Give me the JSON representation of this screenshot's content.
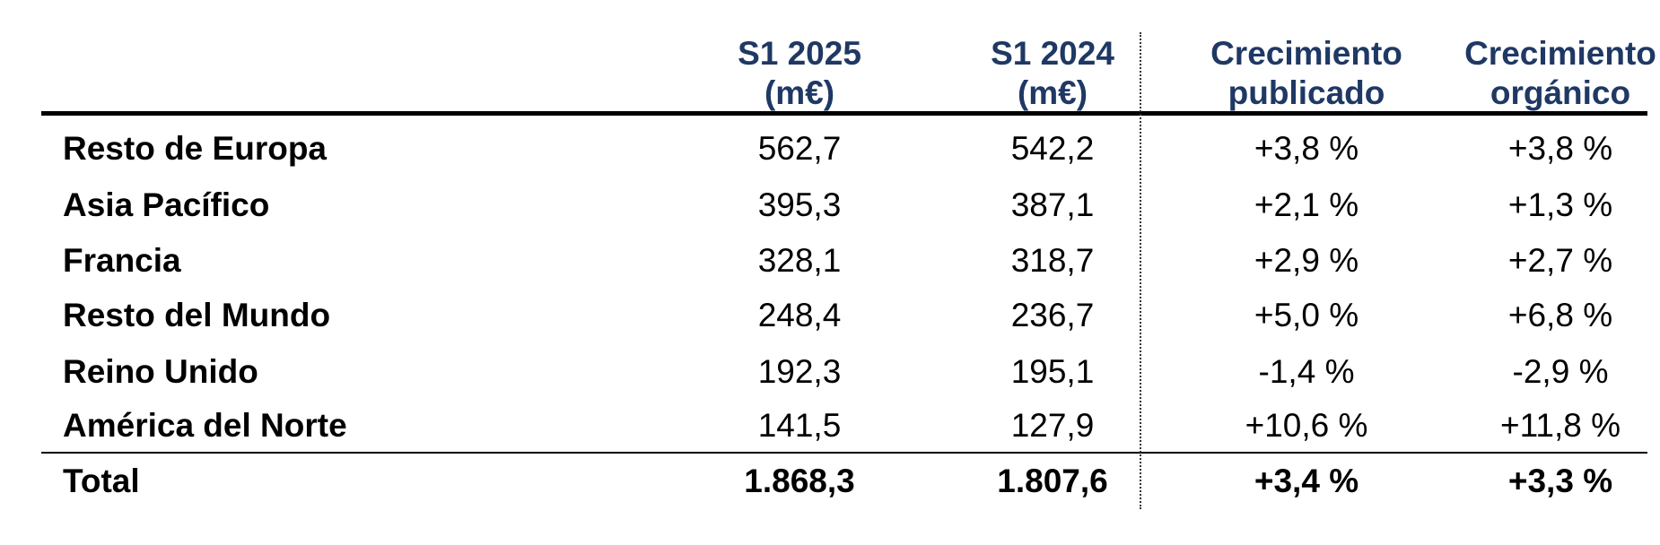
{
  "table": {
    "headers": [
      {
        "line1": "S1 2025",
        "line2": "(m€)"
      },
      {
        "line1": "S1 2024",
        "line2": "(m€)"
      },
      {
        "line1": "Crecimiento",
        "line2": "publicado"
      },
      {
        "line1": "Crecimiento",
        "line2": "orgánico"
      }
    ],
    "rows": [
      {
        "label": "Resto de Europa",
        "s1_2025": "562,7",
        "s1_2024": "542,2",
        "published": "+3,8 %",
        "organic": "+3,8 %"
      },
      {
        "label": "Asia Pacífico",
        "s1_2025": "395,3",
        "s1_2024": "387,1",
        "published": "+2,1 %",
        "organic": "+1,3 %"
      },
      {
        "label": "Francia",
        "s1_2025": "328,1",
        "s1_2024": "318,7",
        "published": "+2,9 %",
        "organic": "+2,7 %"
      },
      {
        "label": "Resto del Mundo",
        "s1_2025": "248,4",
        "s1_2024": "236,7",
        "published": "+5,0 %",
        "organic": "+6,8 %"
      },
      {
        "label": "Reino Unido",
        "s1_2025": "192,3",
        "s1_2024": "195,1",
        "published": "-1,4 %",
        "organic": "-2,9 %"
      },
      {
        "label": "América del Norte",
        "s1_2025": "141,5",
        "s1_2024": "127,9",
        "published": "+10,6 %",
        "organic": "+11,8 %"
      }
    ],
    "total": {
      "label": "Total",
      "s1_2025": "1.868,3",
      "s1_2024": "1.807,6",
      "published": "+3,4 %",
      "organic": "+3,3 %"
    }
  },
  "colors": {
    "header_text": "#1f3864",
    "body_text": "#000000",
    "rules": "#000000"
  }
}
